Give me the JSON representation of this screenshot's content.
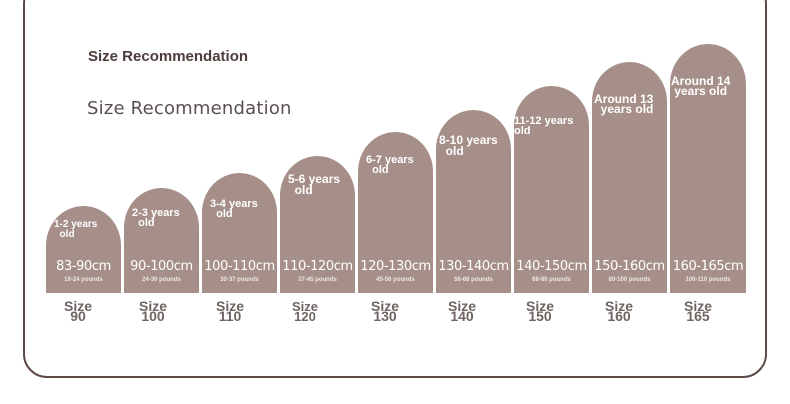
{
  "titles": {
    "bold": "Size Recommendation",
    "light": "Size Recommendation"
  },
  "sizes": [
    {
      "age": "1-2 years\n  old",
      "cm": "83-90cm",
      "pounds": "18-24 pounds",
      "size_word": "Size",
      "size_num": "90"
    },
    {
      "age": "2-3 years\n  old",
      "cm": "90-100cm",
      "pounds": "24-30 pounds",
      "size_word": "Size",
      "size_num": "100"
    },
    {
      "age": "3-4 years\n  old",
      "cm": "100-110cm",
      "pounds": "30-37 pounds",
      "size_word": "Size",
      "size_num": "110"
    },
    {
      "age": "5-6 years\n  old",
      "cm": "110-120cm",
      "pounds": "37-45 pounds",
      "size_word": "Size",
      "size_num": "120"
    },
    {
      "age": "6-7 years\n  old",
      "cm": "120-130cm",
      "pounds": "45-56 pounds",
      "size_word": "Size",
      "size_num": "130"
    },
    {
      "age": "8-10 years\n  old",
      "cm": "130-140cm",
      "pounds": "56-68 pounds",
      "size_word": "Size",
      "size_num": "140"
    },
    {
      "age": "11-12 years\nold",
      "cm": "140-150cm",
      "pounds": "68-80 pounds",
      "size_word": "Size",
      "size_num": "150"
    },
    {
      "age": "Around 13\n  years old",
      "cm": "150-160cm",
      "pounds": "80-100 pounds",
      "size_word": "Size",
      "size_num": "160"
    },
    {
      "age": "Around 14\n years old",
      "cm": "160-165cm",
      "pounds": "100-110 pounds",
      "size_word": "Size",
      "size_num": "165"
    }
  ],
  "colors": {
    "arch": "#a68f89",
    "frame": "#5b4a45",
    "size_text": "#6e6462"
  }
}
